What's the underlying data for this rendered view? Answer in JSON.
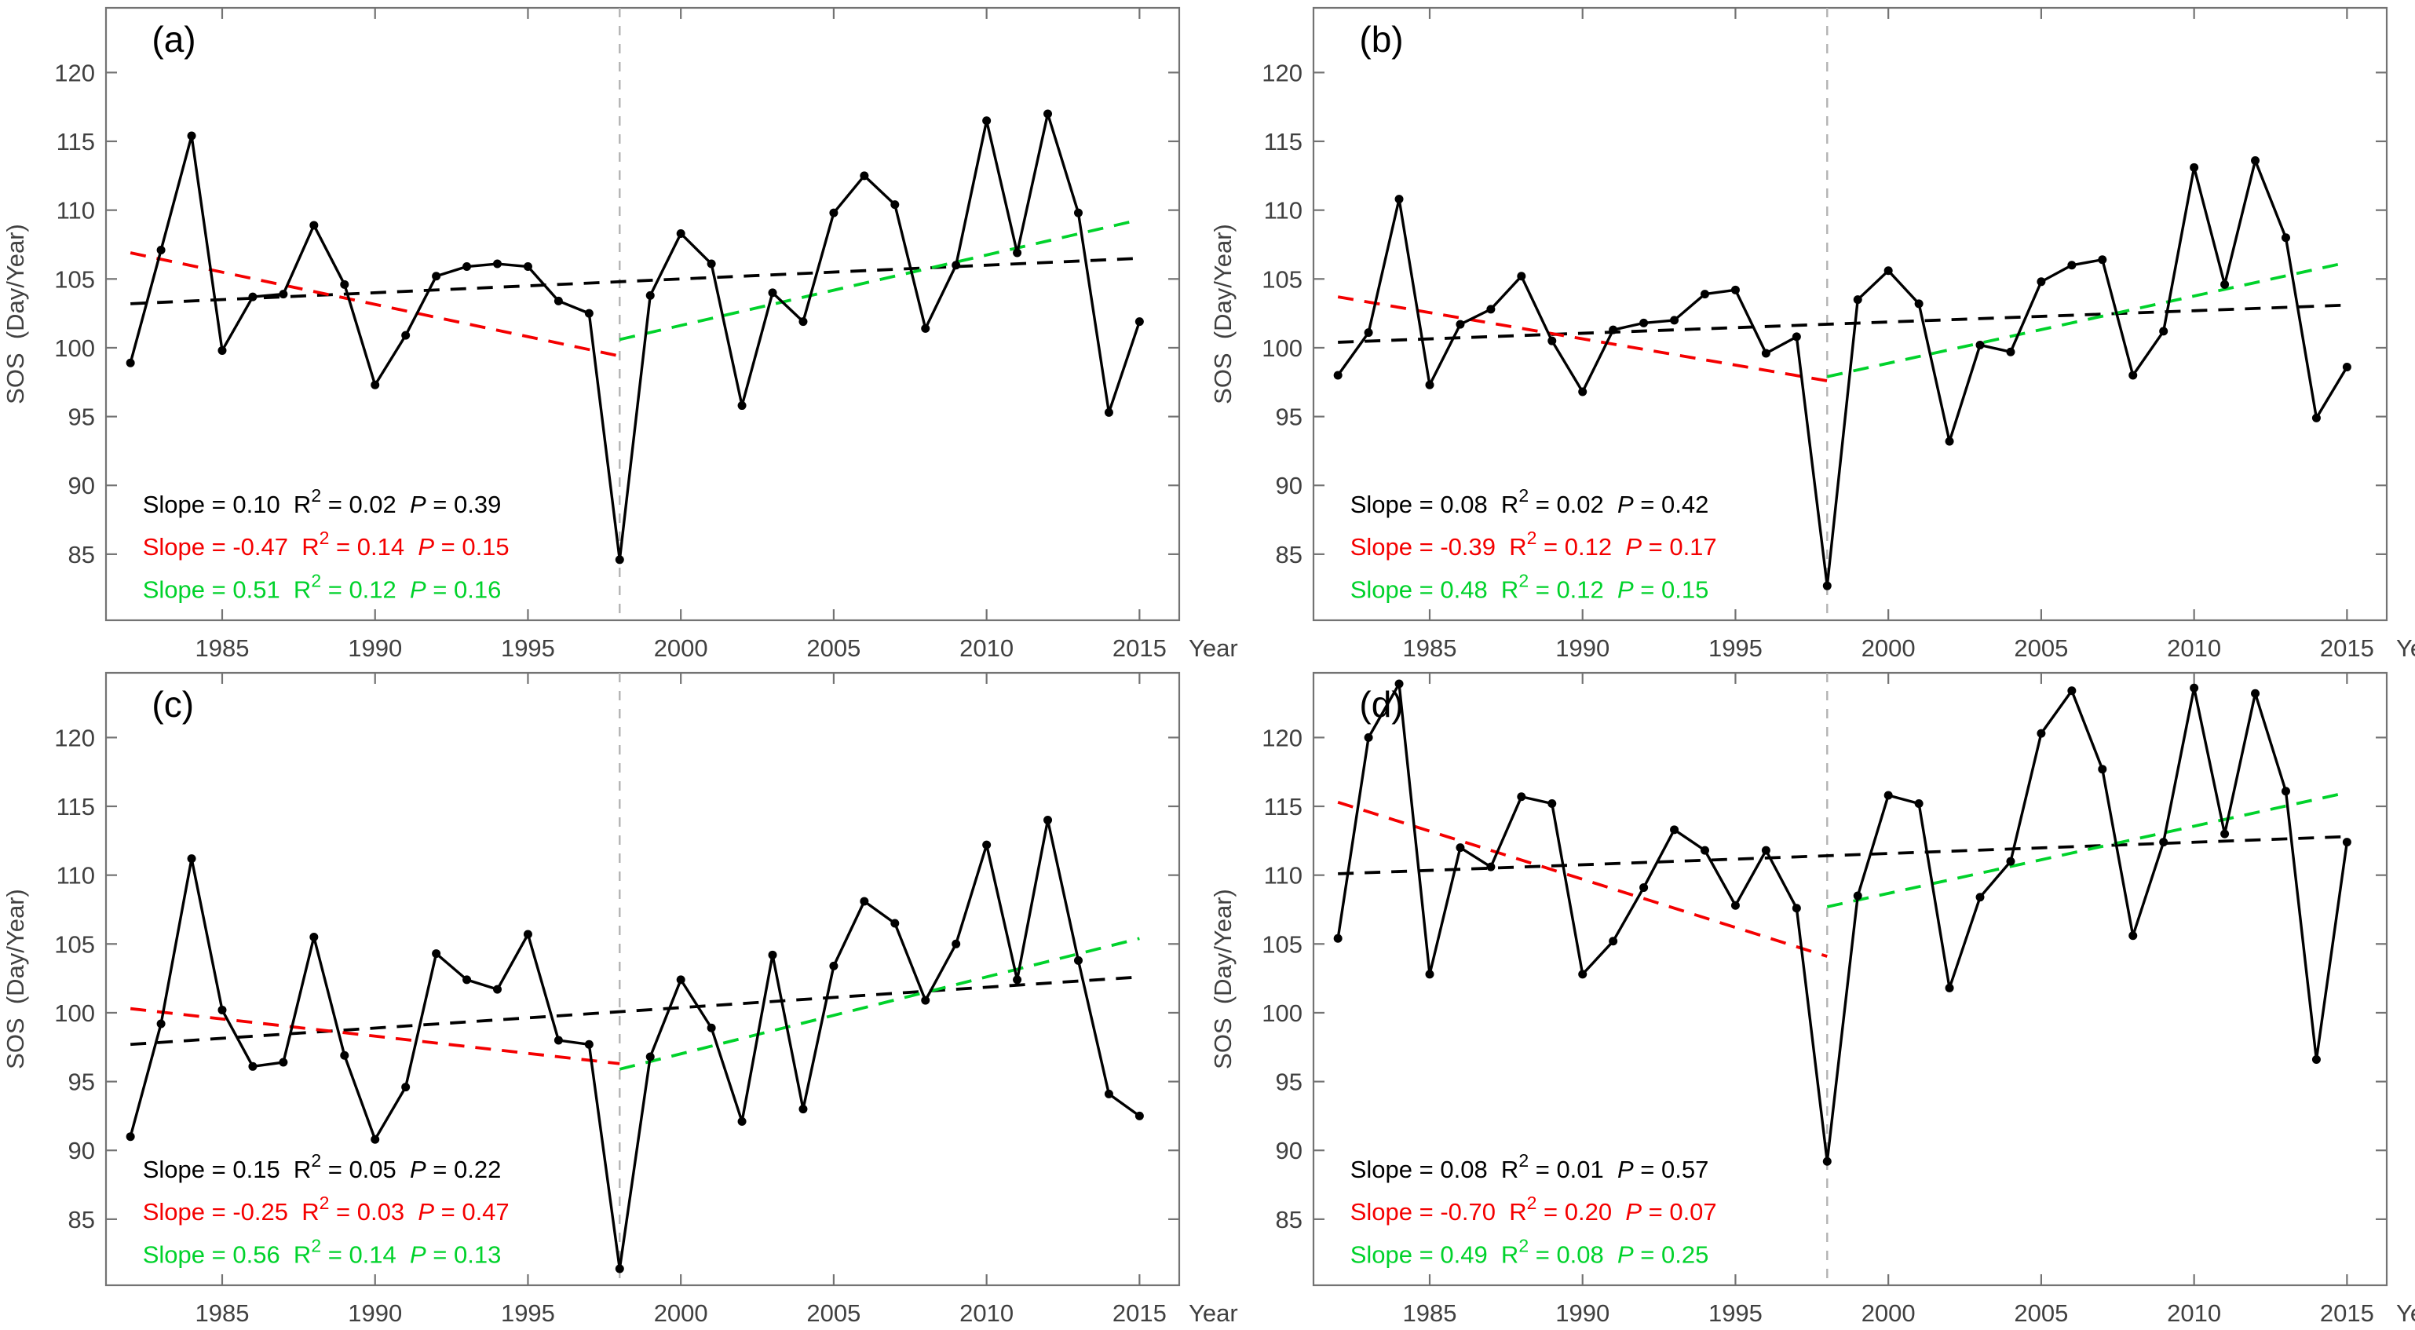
{
  "figure": {
    "y_axis_label": "SOS  (Day/Year)",
    "x_axis_label": "Year",
    "x_ticks": [
      1985,
      1990,
      1995,
      2000,
      2005,
      2010,
      2015
    ],
    "y_ticks": [
      85,
      90,
      95,
      100,
      105,
      110,
      115,
      120
    ],
    "xlim": [
      1981.2,
      2016.3
    ],
    "ylim": [
      80.2,
      124.7
    ],
    "breakpoint_year": 1998,
    "annotation_labels": {
      "slope": "Slope",
      "r": "R",
      "r_sup": "2",
      "p": "P",
      "eq": " = "
    },
    "colors": {
      "series": "#000000",
      "trend_all": "#000000",
      "trend_pre1998": "#f40000",
      "trend_post1998": "#00d22b",
      "breakpoint_line": "#b3b3b3",
      "axis": "#737373",
      "tick_label": "#404040"
    }
  },
  "chart_data": [
    {
      "type": "line",
      "panel_label": "(a)",
      "x": [
        1982,
        1983,
        1984,
        1985,
        1986,
        1987,
        1988,
        1989,
        1990,
        1991,
        1992,
        1993,
        1994,
        1995,
        1996,
        1997,
        1998,
        1999,
        2000,
        2001,
        2002,
        2003,
        2004,
        2005,
        2006,
        2007,
        2008,
        2009,
        2010,
        2011,
        2012,
        2013,
        2014,
        2015
      ],
      "values": [
        98.9,
        107.1,
        115.4,
        99.8,
        103.7,
        103.9,
        108.9,
        104.6,
        97.3,
        100.9,
        105.2,
        105.9,
        106.1,
        105.9,
        103.4,
        102.5,
        84.6,
        103.8,
        108.3,
        106.1,
        95.8,
        104.0,
        101.9,
        109.8,
        112.5,
        110.4,
        101.4,
        106.0,
        116.5,
        106.9,
        117.0,
        109.8,
        95.3,
        101.9
      ],
      "trends": {
        "all": {
          "slope": "0.10",
          "r2": "0.02",
          "p": "0.39",
          "x1": 1982,
          "y1": 103.2,
          "x2": 2015,
          "y2": 106.5
        },
        "pre1998": {
          "slope": "-0.47",
          "r2": "0.14",
          "p": "0.15",
          "x1": 1982,
          "y1": 106.9,
          "x2": 1998,
          "y2": 99.4
        },
        "post1998": {
          "slope": "0.51",
          "r2": "0.12",
          "p": "0.16",
          "x1": 1998,
          "y1": 100.6,
          "x2": 2015,
          "y2": 109.3
        }
      }
    },
    {
      "type": "line",
      "panel_label": "(b)",
      "x": [
        1982,
        1983,
        1984,
        1985,
        1986,
        1987,
        1988,
        1989,
        1990,
        1991,
        1992,
        1993,
        1994,
        1995,
        1996,
        1997,
        1998,
        1999,
        2000,
        2001,
        2002,
        2003,
        2004,
        2005,
        2006,
        2007,
        2008,
        2009,
        2010,
        2011,
        2012,
        2013,
        2014,
        2015
      ],
      "values": [
        98.0,
        101.1,
        110.8,
        97.3,
        101.7,
        102.8,
        105.2,
        100.5,
        96.8,
        101.3,
        101.8,
        102.0,
        103.9,
        104.2,
        99.6,
        100.8,
        82.7,
        103.5,
        105.6,
        103.2,
        93.2,
        100.2,
        99.7,
        104.8,
        106.0,
        106.4,
        98.0,
        101.2,
        113.1,
        104.6,
        113.6,
        108.0,
        94.9,
        98.6
      ],
      "trends": {
        "all": {
          "slope": "0.08",
          "r2": "0.02",
          "p": "0.42",
          "x1": 1982,
          "y1": 100.4,
          "x2": 2015,
          "y2": 103.1
        },
        "pre1998": {
          "slope": "-0.39",
          "r2": "0.12",
          "p": "0.17",
          "x1": 1982,
          "y1": 103.7,
          "x2": 1998,
          "y2": 97.6
        },
        "post1998": {
          "slope": "0.48",
          "r2": "0.12",
          "p": "0.15",
          "x1": 1998,
          "y1": 97.9,
          "x2": 2015,
          "y2": 106.2
        }
      }
    },
    {
      "type": "line",
      "panel_label": "(c)",
      "x": [
        1982,
        1983,
        1984,
        1985,
        1986,
        1987,
        1988,
        1989,
        1990,
        1991,
        1992,
        1993,
        1994,
        1995,
        1996,
        1997,
        1998,
        1999,
        2000,
        2001,
        2002,
        2003,
        2004,
        2005,
        2006,
        2007,
        2008,
        2009,
        2010,
        2011,
        2012,
        2013,
        2014,
        2015
      ],
      "values": [
        91.0,
        99.2,
        111.2,
        100.2,
        96.1,
        96.4,
        105.5,
        96.9,
        90.8,
        94.6,
        104.3,
        102.4,
        101.7,
        105.7,
        98.0,
        97.7,
        81.4,
        96.8,
        102.4,
        98.9,
        92.1,
        104.2,
        93.0,
        103.4,
        108.1,
        106.5,
        100.9,
        105.0,
        112.2,
        102.4,
        114.0,
        103.8,
        94.1,
        92.5
      ],
      "trends": {
        "all": {
          "slope": "0.15",
          "r2": "0.05",
          "p": "0.22",
          "x1": 1982,
          "y1": 97.7,
          "x2": 2015,
          "y2": 102.6
        },
        "pre1998": {
          "slope": "-0.25",
          "r2": "0.03",
          "p": "0.47",
          "x1": 1982,
          "y1": 100.3,
          "x2": 1998,
          "y2": 96.3
        },
        "post1998": {
          "slope": "0.56",
          "r2": "0.14",
          "p": "0.13",
          "x1": 1998,
          "y1": 95.9,
          "x2": 2015,
          "y2": 105.4
        }
      }
    },
    {
      "type": "line",
      "panel_label": "(d)",
      "x": [
        1982,
        1983,
        1984,
        1985,
        1986,
        1987,
        1988,
        1989,
        1990,
        1991,
        1992,
        1993,
        1994,
        1995,
        1996,
        1997,
        1998,
        1999,
        2000,
        2001,
        2002,
        2003,
        2004,
        2005,
        2006,
        2007,
        2008,
        2009,
        2010,
        2011,
        2012,
        2013,
        2014,
        2015
      ],
      "values": [
        105.4,
        120.0,
        123.9,
        102.8,
        112.0,
        110.6,
        115.7,
        115.2,
        102.8,
        105.2,
        109.1,
        113.3,
        111.8,
        107.8,
        111.8,
        107.6,
        89.2,
        108.5,
        115.8,
        115.2,
        101.8,
        108.4,
        111.0,
        120.3,
        123.4,
        117.7,
        105.6,
        112.4,
        123.6,
        113.0,
        123.2,
        116.1,
        96.6,
        112.4
      ],
      "trends": {
        "all": {
          "slope": "0.08",
          "r2": "0.01",
          "p": "0.57",
          "x1": 1982,
          "y1": 110.1,
          "x2": 2015,
          "y2": 112.8
        },
        "pre1998": {
          "slope": "-0.70",
          "r2": "0.20",
          "p": "0.07",
          "x1": 1982,
          "y1": 115.3,
          "x2": 1998,
          "y2": 104.1
        },
        "post1998": {
          "slope": "0.49",
          "r2": "0.08",
          "p": "0.25",
          "x1": 1998,
          "y1": 107.7,
          "x2": 2015,
          "y2": 116.0
        }
      }
    }
  ]
}
